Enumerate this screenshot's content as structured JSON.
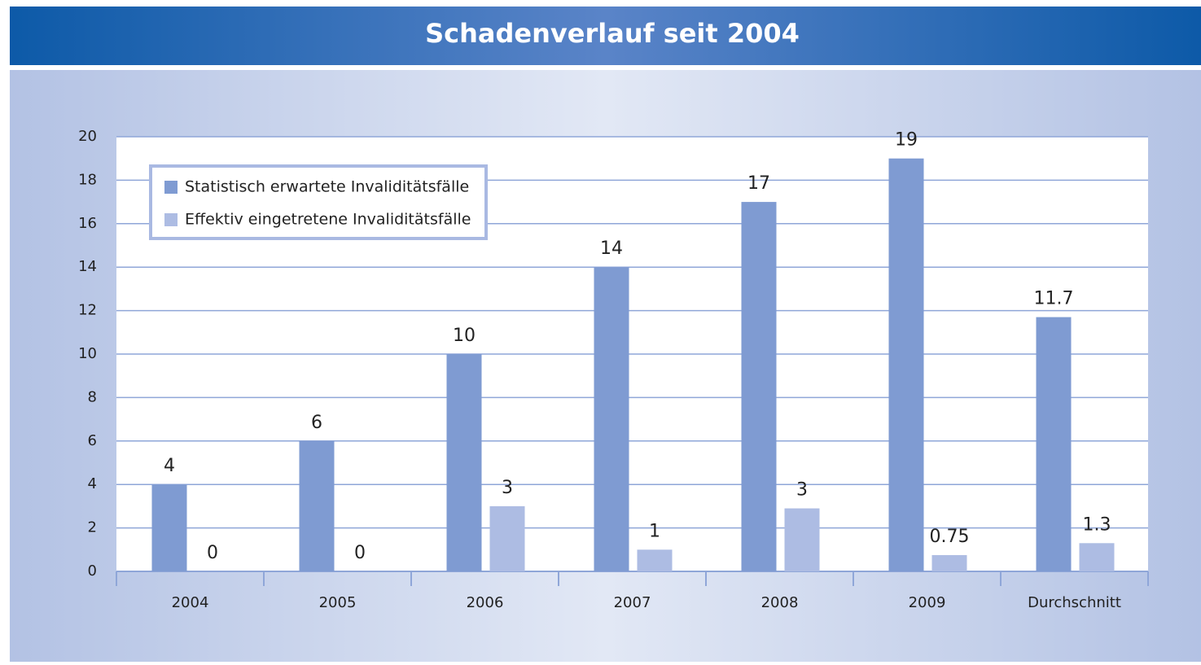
{
  "chart_data": {
    "type": "bar",
    "title": "Schadenverlauf seit 2004",
    "categories": [
      "2004",
      "2005",
      "2006",
      "2007",
      "2008",
      "2009",
      "Durchschnitt"
    ],
    "series": [
      {
        "name": "Statistisch erwartete Invaliditätsfälle",
        "color": "#7f9bd2",
        "values": [
          4,
          6,
          10,
          14,
          17,
          19,
          11.7
        ]
      },
      {
        "name": "Effektiv eingetretene Invaliditätsfälle",
        "color": "#adbce3",
        "values": [
          0,
          0,
          3,
          1,
          2.9,
          0.75,
          1.3
        ],
        "value_labels": [
          "0",
          "0",
          "3",
          "1",
          "3",
          "0.75",
          "1.3"
        ]
      }
    ],
    "ylim": [
      0,
      20
    ],
    "yticks": [
      0,
      2,
      4,
      6,
      8,
      10,
      12,
      14,
      16,
      18,
      20
    ],
    "grid": true,
    "legend": "upper left"
  }
}
